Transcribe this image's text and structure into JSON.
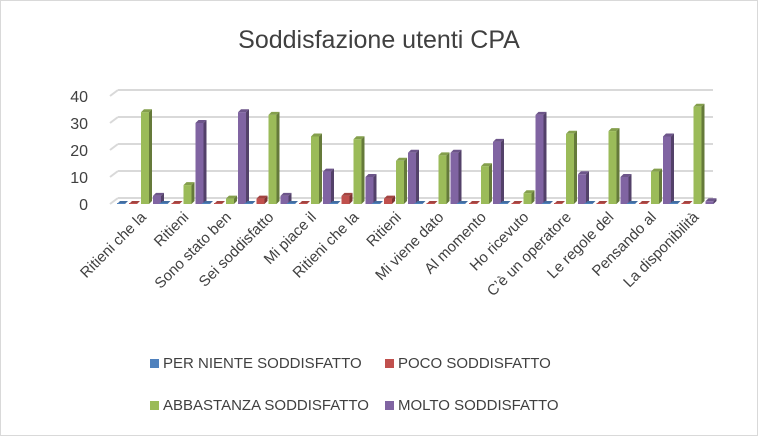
{
  "chart_data": {
    "type": "bar",
    "title": "Soddisfazione utenti CPA",
    "xlabel": "",
    "ylabel": "",
    "ylim": [
      0,
      40
    ],
    "yticks": [
      0,
      10,
      20,
      30,
      40
    ],
    "grid": true,
    "legend_position": "bottom",
    "categories": [
      "Ritieni che la",
      "Ritieni",
      "Sono stato ben",
      "Sei soddisfatto",
      "Mi piace il",
      "Ritieni che la",
      "Ritieni",
      "Mi viene dato",
      "Al momento",
      "Ho ricevuto",
      "C’è un operatore",
      "Le regole del",
      "Pensando al",
      "La disponibilità"
    ],
    "series": [
      {
        "name": "PER NIENTE SODDISFATTO",
        "color": "#4f81bd",
        "values": [
          0,
          0,
          0,
          0,
          0,
          0,
          0,
          0,
          0,
          0,
          0,
          0,
          0,
          0
        ]
      },
      {
        "name": "POCO SODDISFATTO",
        "color": "#c0504d",
        "values": [
          0,
          0,
          0,
          2,
          0,
          3,
          2,
          0,
          0,
          0,
          0,
          0,
          0,
          0
        ]
      },
      {
        "name": "ABBASTANZA SODDISFATTO",
        "color": "#9bbb59",
        "values": [
          34,
          7,
          2,
          33,
          25,
          24,
          16,
          18,
          14,
          4,
          26,
          27,
          12,
          36
        ]
      },
      {
        "name": "MOLTO SODDISFATTO",
        "color": "#8064a2",
        "values": [
          3,
          30,
          34,
          3,
          12,
          10,
          19,
          19,
          23,
          33,
          11,
          10,
          25,
          1
        ]
      }
    ]
  }
}
